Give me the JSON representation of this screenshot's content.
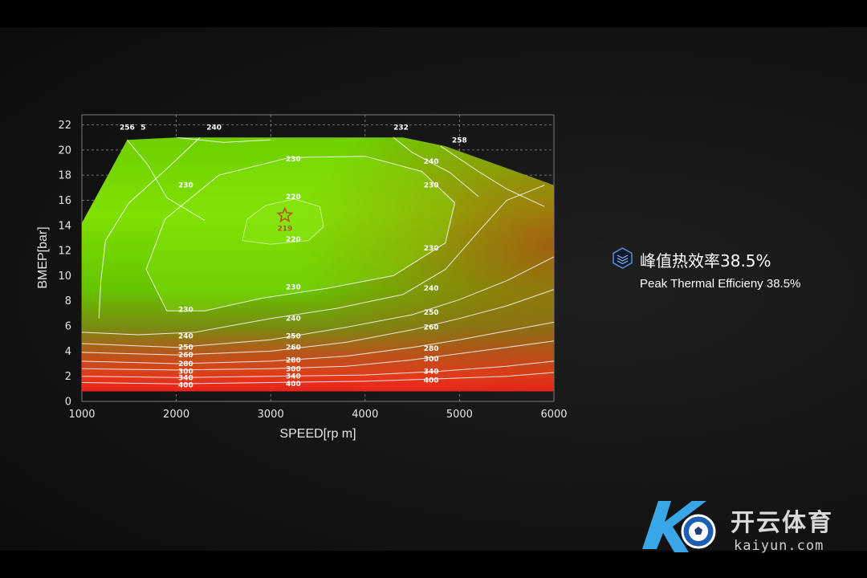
{
  "colors": {
    "background": "#141414",
    "efficient": "#7fe000",
    "inefficient": "#e0241c",
    "contour": "#ffffff",
    "accent": "#5b8fd6"
  },
  "callout": {
    "icon": "layers-icon",
    "title_cn": "峰值热效率38.5%",
    "subtitle_en": "Peak Thermal Efficieny 38.5%"
  },
  "watermark": {
    "brand_cn": "开云体育",
    "url": "kaiyun.com",
    "icon": "kaiyun-logo-icon"
  },
  "chart_data": {
    "type": "contour",
    "title": "",
    "xlabel": "SPEED[rp m]",
    "ylabel": "BMEP[bar]",
    "xlim": [
      1000,
      6000
    ],
    "ylim": [
      0,
      22
    ],
    "xticks": [
      1000,
      2000,
      3000,
      4000,
      5000,
      6000
    ],
    "yticks": [
      0,
      2,
      4,
      6,
      8,
      10,
      12,
      14,
      16,
      18,
      20,
      22
    ],
    "grid": true,
    "boundary": [
      [
        1000,
        0.8
      ],
      [
        1000,
        14.2
      ],
      [
        1480,
        20.8
      ],
      [
        2000,
        21
      ],
      [
        4400,
        21
      ],
      [
        4850,
        20.3
      ],
      [
        6000,
        17.2
      ],
      [
        6000,
        0.8
      ]
    ],
    "peak": {
      "x": 3150,
      "y": 14.8,
      "label": "219",
      "marker": "star"
    },
    "contours": [
      {
        "level": "220",
        "points": [
          [
            2700,
            12.8
          ],
          [
            2750,
            14.5
          ],
          [
            2950,
            15.6
          ],
          [
            3250,
            16.1
          ],
          [
            3520,
            15.5
          ],
          [
            3560,
            13.9
          ],
          [
            3400,
            12.8
          ],
          [
            3000,
            12.5
          ],
          [
            2700,
            12.8
          ]
        ]
      },
      {
        "level": "230",
        "points": [
          [
            1900,
            7.2
          ],
          [
            1680,
            10.5
          ],
          [
            1880,
            14.5
          ],
          [
            2450,
            18
          ],
          [
            3200,
            19.4
          ],
          [
            4000,
            19.5
          ],
          [
            4600,
            18.3
          ],
          [
            4950,
            15.8
          ],
          [
            4850,
            12.6
          ],
          [
            4300,
            10
          ],
          [
            3600,
            9
          ],
          [
            2900,
            8.2
          ],
          [
            2300,
            7.2
          ],
          [
            1900,
            7.2
          ]
        ]
      },
      {
        "level": "230",
        "points": [
          [
            1180,
            6.6
          ],
          [
            1200,
            9.5
          ],
          [
            1250,
            12.8
          ],
          [
            1500,
            15.8
          ],
          [
            1900,
            18.5
          ],
          [
            2250,
            21
          ]
        ]
      },
      {
        "level": "240",
        "points": [
          [
            1000,
            5.5
          ],
          [
            1600,
            5.3
          ],
          [
            2200,
            5.5
          ],
          [
            3000,
            6.6
          ],
          [
            3700,
            7.4
          ],
          [
            4400,
            8.5
          ],
          [
            4850,
            10.5
          ],
          [
            5200,
            13.5
          ],
          [
            5500,
            16
          ],
          [
            5900,
            17.2
          ]
        ]
      },
      {
        "level": "240",
        "points": [
          [
            2000,
            21
          ],
          [
            2500,
            20.6
          ],
          [
            3000,
            20.8
          ]
        ]
      },
      {
        "level": "250",
        "points": [
          [
            1000,
            4.6
          ],
          [
            2000,
            4.3
          ],
          [
            3000,
            4.9
          ],
          [
            3800,
            5.9
          ],
          [
            4500,
            6.9
          ],
          [
            5000,
            8.1
          ],
          [
            5500,
            9.6
          ],
          [
            6000,
            11.5
          ]
        ]
      },
      {
        "level": "256.5",
        "points": [
          [
            1480,
            20.8
          ],
          [
            1700,
            18.8
          ],
          [
            1900,
            16.2
          ],
          [
            2300,
            14.4
          ]
        ]
      },
      {
        "level": "232",
        "points": [
          [
            4300,
            21
          ],
          [
            4500,
            19.8
          ],
          [
            4900,
            18.2
          ],
          [
            5200,
            16.3
          ]
        ]
      },
      {
        "level": "258",
        "points": [
          [
            4800,
            20.3
          ],
          [
            5200,
            18.3
          ],
          [
            5500,
            16.9
          ],
          [
            5900,
            15.5
          ]
        ]
      },
      {
        "level": "260",
        "points": [
          [
            1000,
            3.9
          ],
          [
            2000,
            3.7
          ],
          [
            3000,
            4
          ],
          [
            3800,
            4.7
          ],
          [
            4500,
            5.7
          ],
          [
            5000,
            6.6
          ],
          [
            5500,
            7.6
          ],
          [
            6000,
            8.9
          ]
        ]
      },
      {
        "level": "280",
        "points": [
          [
            1000,
            3.2
          ],
          [
            2000,
            3
          ],
          [
            3000,
            3.2
          ],
          [
            3800,
            3.6
          ],
          [
            4500,
            4.3
          ],
          [
            5000,
            4.9
          ],
          [
            5500,
            5.6
          ],
          [
            6000,
            6.3
          ]
        ]
      },
      {
        "level": "300",
        "points": [
          [
            1000,
            2.6
          ],
          [
            2000,
            2.5
          ],
          [
            3000,
            2.6
          ],
          [
            3800,
            2.8
          ],
          [
            4500,
            3.3
          ],
          [
            5000,
            3.8
          ],
          [
            5500,
            4.3
          ],
          [
            6000,
            4.8
          ]
        ]
      },
      {
        "level": "340",
        "points": [
          [
            1000,
            2
          ],
          [
            2000,
            1.9
          ],
          [
            3000,
            2
          ],
          [
            4000,
            2.1
          ],
          [
            4800,
            2.4
          ],
          [
            5500,
            2.8
          ],
          [
            6000,
            3.2
          ]
        ]
      },
      {
        "level": "400",
        "points": [
          [
            1000,
            1.5
          ],
          [
            2000,
            1.4
          ],
          [
            3000,
            1.5
          ],
          [
            4000,
            1.6
          ],
          [
            4800,
            1.8
          ],
          [
            5500,
            2
          ],
          [
            6000,
            2.3
          ]
        ]
      }
    ],
    "labels": [
      {
        "text": "256",
        "x": 1480,
        "y": 21.8
      },
      {
        "text": "5",
        "x": 1650,
        "y": 21.8
      },
      {
        "text": "240",
        "x": 2400,
        "y": 21.8
      },
      {
        "text": "232",
        "x": 4380,
        "y": 21.8
      },
      {
        "text": "258",
        "x": 5000,
        "y": 20.8
      },
      {
        "text": "230",
        "x": 3240,
        "y": 19.3
      },
      {
        "text": "240",
        "x": 4700,
        "y": 19.1
      },
      {
        "text": "230",
        "x": 2100,
        "y": 17.2
      },
      {
        "text": "230",
        "x": 4700,
        "y": 17.2
      },
      {
        "text": "220",
        "x": 3240,
        "y": 16.3
      },
      {
        "text": "220",
        "x": 3240,
        "y": 12.9
      },
      {
        "text": "230",
        "x": 4700,
        "y": 12.2
      },
      {
        "text": "230",
        "x": 3240,
        "y": 9.1
      },
      {
        "text": "240",
        "x": 4700,
        "y": 9.0
      },
      {
        "text": "230",
        "x": 2100,
        "y": 7.3
      },
      {
        "text": "240",
        "x": 3240,
        "y": 6.6
      },
      {
        "text": "250",
        "x": 4700,
        "y": 7.1
      },
      {
        "text": "260",
        "x": 4700,
        "y": 5.9
      },
      {
        "text": "240",
        "x": 2100,
        "y": 5.2
      },
      {
        "text": "250",
        "x": 3240,
        "y": 5.2
      },
      {
        "text": "250",
        "x": 2100,
        "y": 4.3
      },
      {
        "text": "260",
        "x": 3240,
        "y": 4.3
      },
      {
        "text": "280",
        "x": 4700,
        "y": 4.2
      },
      {
        "text": "260",
        "x": 2100,
        "y": 3.7
      },
      {
        "text": "300",
        "x": 4700,
        "y": 3.4
      },
      {
        "text": "280",
        "x": 2100,
        "y": 3.0
      },
      {
        "text": "280",
        "x": 3240,
        "y": 3.3
      },
      {
        "text": "300",
        "x": 2100,
        "y": 2.4
      },
      {
        "text": "300",
        "x": 3240,
        "y": 2.6
      },
      {
        "text": "340",
        "x": 4700,
        "y": 2.4
      },
      {
        "text": "340",
        "x": 2100,
        "y": 1.9
      },
      {
        "text": "340",
        "x": 3240,
        "y": 2.0
      },
      {
        "text": "400",
        "x": 4700,
        "y": 1.7
      },
      {
        "text": "400",
        "x": 2100,
        "y": 1.3
      },
      {
        "text": "400",
        "x": 3240,
        "y": 1.4
      }
    ]
  }
}
